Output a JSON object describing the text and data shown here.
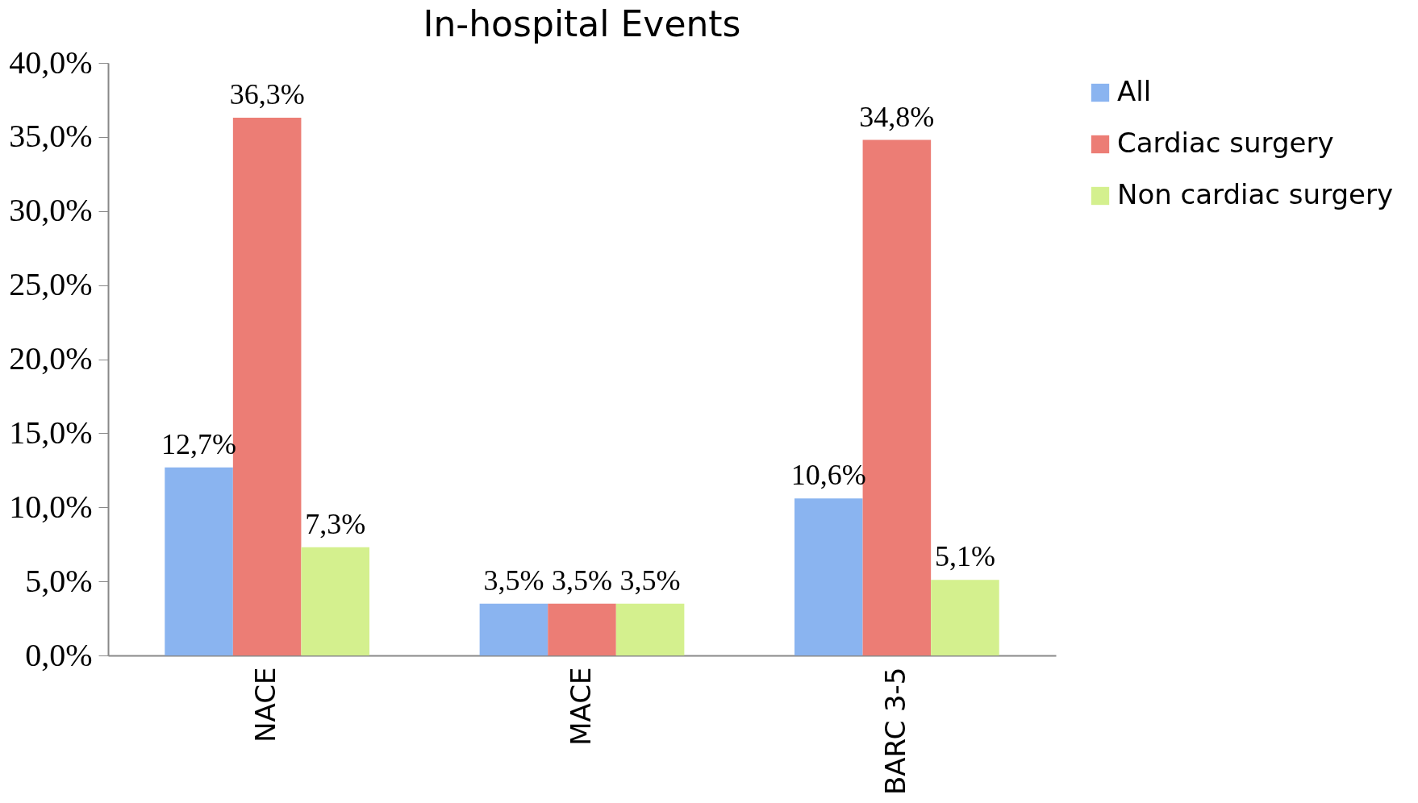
{
  "chart_data": {
    "type": "bar",
    "title": "In-hospital Events",
    "categories": [
      "NACE",
      "MACE",
      "BARC 3-5"
    ],
    "series": [
      {
        "name": "All",
        "color": "#8ab4f0",
        "values": [
          12.7,
          3.5,
          10.6
        ],
        "value_labels": [
          "12,7%",
          "3,5%",
          "10,6%"
        ]
      },
      {
        "name": "Cardiac surgery",
        "color": "#ec7d75",
        "values": [
          36.3,
          3.5,
          34.8
        ],
        "value_labels": [
          "36,3%",
          "3,5%",
          "34,8%"
        ]
      },
      {
        "name": "Non cardiac surgery",
        "color": "#d4f08e",
        "values": [
          7.3,
          3.5,
          5.1
        ],
        "value_labels": [
          "7,3%",
          "3,5%",
          "5,1%"
        ]
      }
    ],
    "ylim": [
      0,
      40
    ],
    "yticks": [
      {
        "value": 0,
        "label": "0,0%"
      },
      {
        "value": 5,
        "label": "5,0%"
      },
      {
        "value": 10,
        "label": "10,0%"
      },
      {
        "value": 15,
        "label": "15,0%"
      },
      {
        "value": 20,
        "label": "20,0%"
      },
      {
        "value": 25,
        "label": "25,0%"
      },
      {
        "value": 30,
        "label": "30,0%"
      },
      {
        "value": 35,
        "label": "35,0%"
      },
      {
        "value": 40,
        "label": "40,0%"
      }
    ],
    "grid": false,
    "legend": "right"
  }
}
